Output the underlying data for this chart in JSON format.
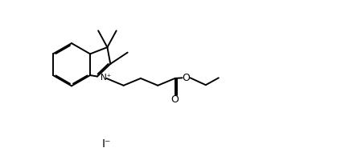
{
  "bg_color": "#ffffff",
  "line_color": "#000000",
  "line_width": 1.4,
  "figsize": [
    4.24,
    2.0
  ],
  "dpi": 100,
  "iodide_label": "I⁻",
  "nplus_label": "N⁺"
}
